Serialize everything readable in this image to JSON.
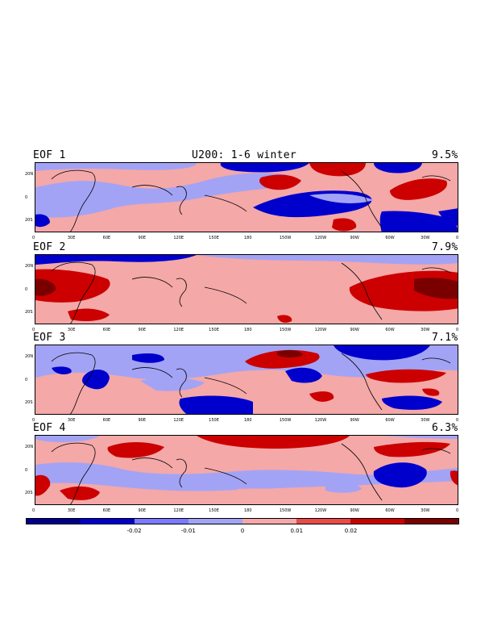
{
  "figure": {
    "title": "U200: 1-6 winter",
    "panels": [
      {
        "label": "EOF 1",
        "variance": "9.5%"
      },
      {
        "label": "EOF 2",
        "variance": "7.9%"
      },
      {
        "label": "EOF 3",
        "variance": "7.1%"
      },
      {
        "label": "EOF 4",
        "variance": "6.3%"
      }
    ],
    "lat_ticks": [
      "20N",
      "0",
      "20S"
    ],
    "lon_ticks": [
      "0",
      "30E",
      "60E",
      "90E",
      "120E",
      "150E",
      "180",
      "150W",
      "120W",
      "90W",
      "60W",
      "30W",
      "0"
    ],
    "colorbar": {
      "colors": [
        "#00008b",
        "#0000cd",
        "#7b7bff",
        "#a3a3f5",
        "#f4a8a8",
        "#e94b4b",
        "#cc0000",
        "#7a0000"
      ],
      "labels": [
        "-0.02",
        "-0.01",
        "0",
        "0.01",
        "0.02"
      ]
    }
  },
  "colors": {
    "strong_neg": "#0000cd",
    "weak_neg": "#a3a3f5",
    "weak_pos": "#f4a8a8",
    "strong_pos": "#d40000",
    "max_pos": "#7a0000",
    "coast": "#000000"
  }
}
